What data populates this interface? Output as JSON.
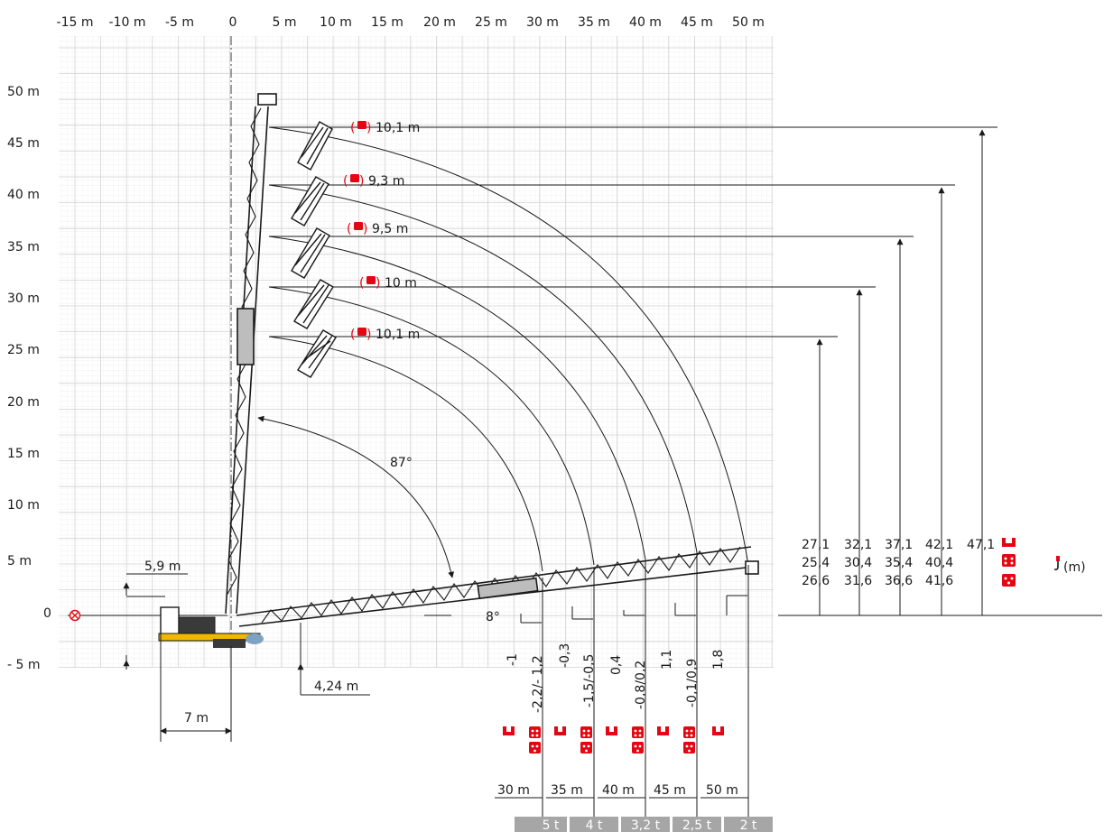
{
  "x_axis": {
    "labels": [
      "-15 m",
      "-10 m",
      "-5 m",
      "0",
      "5 m",
      "10 m",
      "15 m",
      "20 m",
      "25 m",
      "30 m",
      "35 m",
      "40 m",
      "45 m",
      "50 m"
    ]
  },
  "y_axis": {
    "labels": [
      "50 m",
      "45 m",
      "40 m",
      "35 m",
      "30 m",
      "25 m",
      "20 m",
      "15 m",
      "10 m",
      "5 m",
      "0",
      "- 5 m"
    ]
  },
  "jib_config_labels": [
    "10,1 m",
    "9,3 m",
    "9,5 m",
    "10 m",
    "10,1 m"
  ],
  "angles": {
    "luffing_max": "87°",
    "min": "8°"
  },
  "dimensions": {
    "counter_height": "5,9 m",
    "base_width": "7 m",
    "offset": "4,24 m"
  },
  "hook_height_table": {
    "rows": [
      [
        "27,1",
        "32,1",
        "37,1",
        "42,1",
        "47,1"
      ],
      [
        "25,4",
        "30,4",
        "35,4",
        "40,4",
        ""
      ],
      [
        "26,6",
        "31,6",
        "36,6",
        "41,6",
        ""
      ]
    ],
    "unit": "(m)"
  },
  "bottom_heights": [
    "-1",
    "-2,2/- 1,2",
    "-0,3",
    "-1,5/-0,5",
    "0,4",
    "-0,8/0,2",
    "1,1",
    "-0,1/0,9",
    "1,8"
  ],
  "radius_labels": [
    "30 m",
    "35 m",
    "40 m",
    "45 m",
    "50 m"
  ],
  "load_labels": [
    "5 t",
    "4 t",
    "3,2 t",
    "2,5 t",
    "2 t"
  ],
  "colors": {
    "accent": "#e30613",
    "load_box": "#a6a6a6",
    "crane_yellow": "#f2b800"
  }
}
